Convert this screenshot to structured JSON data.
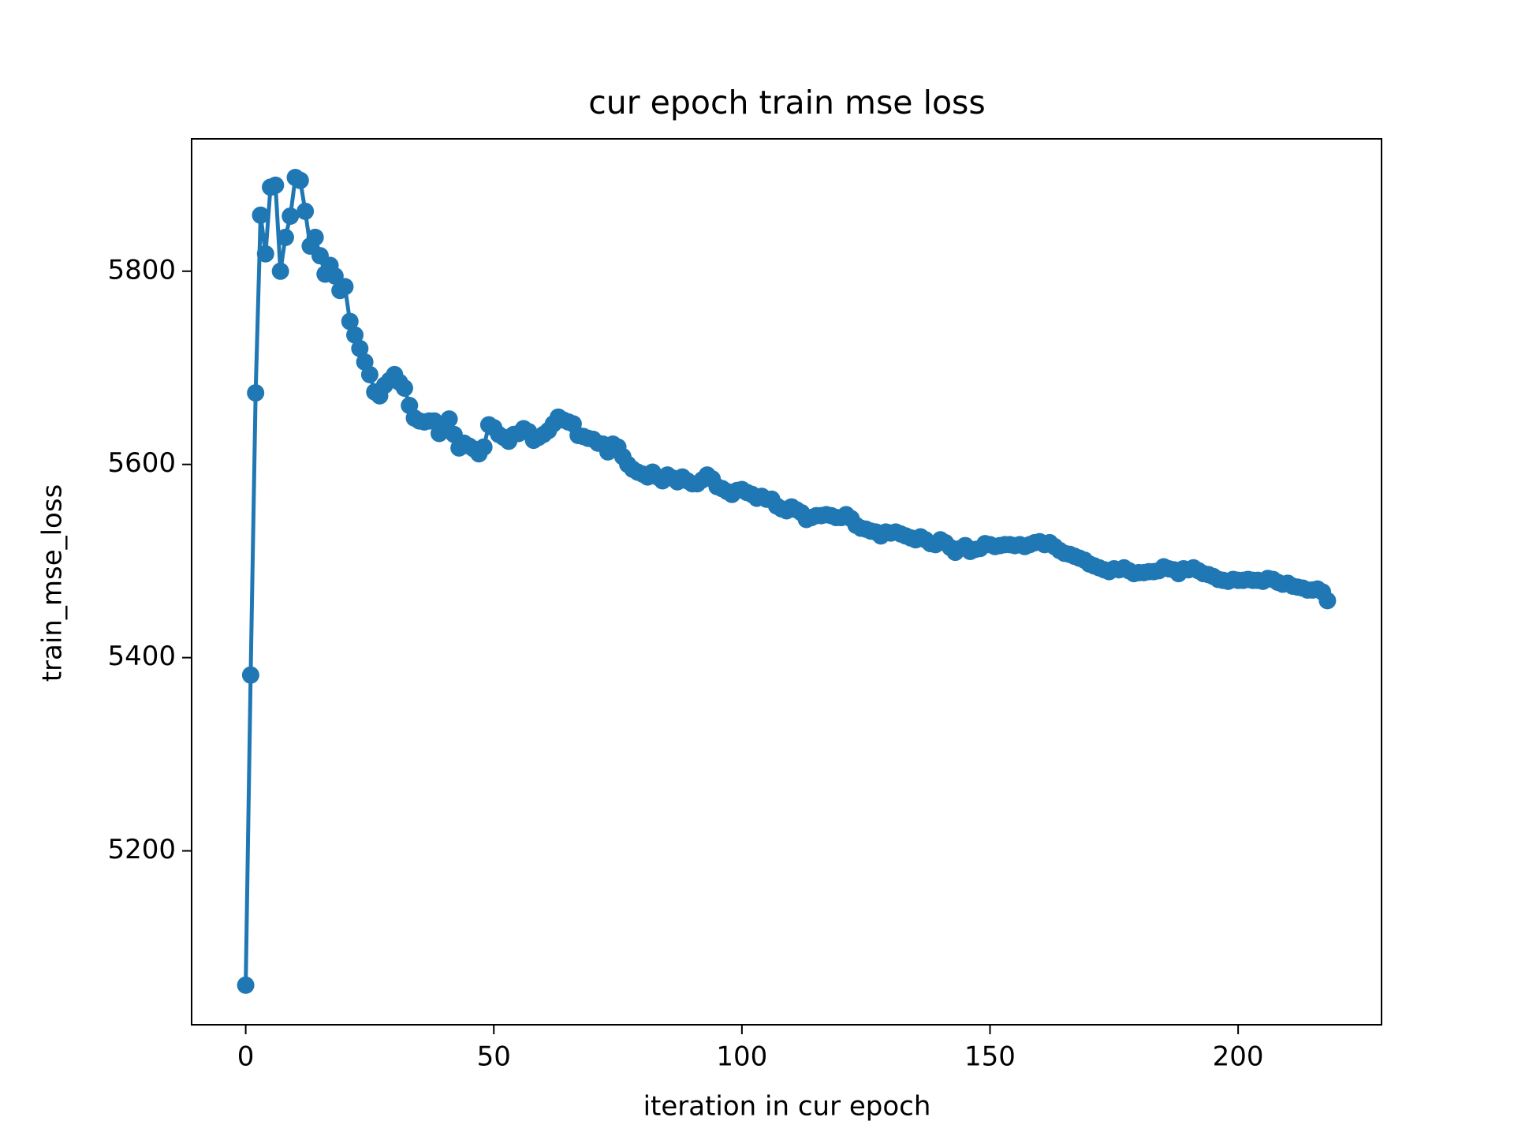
{
  "chart_data": {
    "type": "line",
    "title": "cur epoch train mse loss",
    "xlabel": "iteration in cur epoch",
    "ylabel": "train_mse_loss",
    "color": "#1f77b4",
    "marker": true,
    "xlim": [
      -10.9,
      228.9
    ],
    "ylim": [
      5020,
      5937
    ],
    "xticks": [
      0,
      50,
      100,
      150,
      200
    ],
    "yticks": [
      5200,
      5400,
      5600,
      5800
    ],
    "x": [
      0,
      1,
      2,
      3,
      4,
      5,
      6,
      7,
      8,
      9,
      10,
      11,
      12,
      13,
      14,
      15,
      16,
      17,
      18,
      19,
      20,
      21,
      22,
      23,
      24,
      25,
      26,
      27,
      28,
      29,
      30,
      31,
      32,
      33,
      34,
      35,
      36,
      37,
      38,
      39,
      40,
      41,
      42,
      43,
      44,
      45,
      46,
      47,
      48,
      49,
      50,
      51,
      52,
      53,
      54,
      55,
      56,
      57,
      58,
      59,
      60,
      61,
      62,
      63,
      64,
      65,
      66,
      67,
      68,
      69,
      70,
      71,
      72,
      73,
      74,
      75,
      76,
      77,
      78,
      79,
      80,
      81,
      82,
      83,
      84,
      85,
      86,
      87,
      88,
      89,
      90,
      91,
      92,
      93,
      94,
      95,
      96,
      97,
      98,
      99,
      100,
      101,
      102,
      103,
      104,
      105,
      106,
      107,
      108,
      109,
      110,
      111,
      112,
      113,
      114,
      115,
      116,
      117,
      118,
      119,
      120,
      121,
      122,
      123,
      124,
      125,
      126,
      127,
      128,
      129,
      130,
      131,
      132,
      133,
      134,
      135,
      136,
      137,
      138,
      139,
      140,
      141,
      142,
      143,
      144,
      145,
      146,
      147,
      148,
      149,
      150,
      151,
      152,
      153,
      154,
      155,
      156,
      157,
      158,
      159,
      160,
      161,
      162,
      163,
      164,
      165,
      166,
      167,
      168,
      169,
      170,
      171,
      172,
      173,
      174,
      175,
      176,
      177,
      178,
      179,
      180,
      181,
      182,
      183,
      184,
      185,
      186,
      187,
      188,
      189,
      190,
      191,
      192,
      193,
      194,
      195,
      196,
      197,
      198,
      199,
      200,
      201,
      202,
      203,
      204,
      205,
      206,
      207,
      208,
      209,
      210,
      211,
      212,
      213,
      214,
      215,
      216,
      217,
      218
    ],
    "values": [
      5061,
      5382,
      5674,
      5858,
      5818,
      5887,
      5889,
      5800,
      5835,
      5857,
      5897,
      5894,
      5862,
      5826,
      5835,
      5816,
      5797,
      5806,
      5795,
      5780,
      5784,
      5748,
      5734,
      5720,
      5706,
      5693,
      5675,
      5671,
      5682,
      5687,
      5693,
      5685,
      5679,
      5661,
      5648,
      5645,
      5644,
      5645,
      5645,
      5632,
      5638,
      5647,
      5631,
      5617,
      5622,
      5619,
      5616,
      5611,
      5618,
      5641,
      5638,
      5631,
      5628,
      5624,
      5631,
      5632,
      5637,
      5634,
      5625,
      5628,
      5631,
      5635,
      5642,
      5649,
      5646,
      5644,
      5642,
      5630,
      5629,
      5627,
      5626,
      5622,
      5621,
      5613,
      5621,
      5618,
      5608,
      5600,
      5595,
      5592,
      5590,
      5587,
      5592,
      5587,
      5583,
      5589,
      5586,
      5582,
      5587,
      5583,
      5580,
      5580,
      5584,
      5589,
      5585,
      5577,
      5575,
      5572,
      5569,
      5573,
      5574,
      5571,
      5569,
      5565,
      5567,
      5564,
      5564,
      5557,
      5554,
      5552,
      5556,
      5553,
      5550,
      5543,
      5545,
      5547,
      5547,
      5548,
      5547,
      5545,
      5545,
      5548,
      5544,
      5537,
      5534,
      5533,
      5531,
      5530,
      5526,
      5530,
      5529,
      5530,
      5528,
      5526,
      5524,
      5522,
      5525,
      5522,
      5518,
      5517,
      5522,
      5519,
      5514,
      5509,
      5513,
      5516,
      5510,
      5512,
      5513,
      5518,
      5517,
      5515,
      5516,
      5517,
      5517,
      5516,
      5517,
      5515,
      5517,
      5519,
      5520,
      5517,
      5519,
      5515,
      5511,
      5508,
      5507,
      5505,
      5503,
      5501,
      5497,
      5495,
      5493,
      5491,
      5489,
      5492,
      5491,
      5493,
      5490,
      5487,
      5488,
      5488,
      5489,
      5489,
      5490,
      5494,
      5492,
      5491,
      5487,
      5492,
      5491,
      5493,
      5490,
      5487,
      5486,
      5484,
      5481,
      5480,
      5479,
      5481,
      5480,
      5480,
      5481,
      5480,
      5480,
      5479,
      5482,
      5481,
      5478,
      5476,
      5477,
      5474,
      5473,
      5472,
      5470,
      5470,
      5471,
      5468,
      5459
    ]
  }
}
